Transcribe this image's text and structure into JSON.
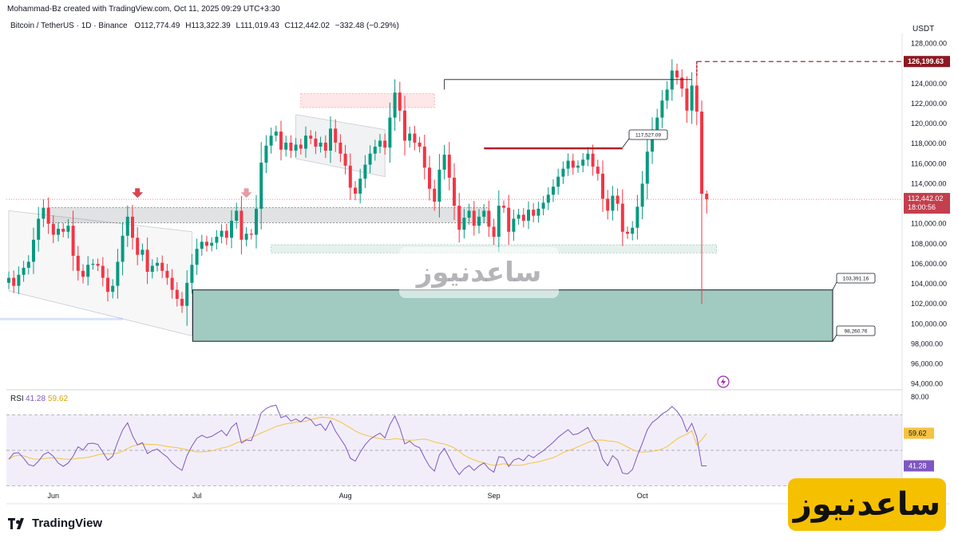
{
  "header": {
    "author_line": "Mohammad-Bz created with TradingView.com, Oct 11, 2025 09:29 UTC+3:30",
    "symbol": "Bitcoin / TetherUS · 1D · Binance",
    "open": "O112,774.49",
    "high": "H113,322.39",
    "low": "L111,019.43",
    "close": "C112,442.02",
    "change": "−332.48 (−0.29%)"
  },
  "currency": "USDT",
  "brand": {
    "tradingview": "TradingView",
    "watermark": "ساعدنیوز"
  },
  "colors": {
    "up": "#089981",
    "down": "#f23645",
    "rsi": "#7e57c2",
    "rsi_ma": "#f5c342",
    "zone": "#9cc7bd"
  },
  "chart_data": {
    "type": "candlestick",
    "timeframe": "1D",
    "ylim": [
      93500,
      129000
    ],
    "y_ticks": [
      94000,
      96000,
      98000,
      100000,
      102000,
      104000,
      106000,
      108000,
      110000,
      112000,
      114000,
      116000,
      118000,
      120000,
      122000,
      124000,
      126000,
      128000
    ],
    "y_tick_labels": [
      "94,000.00",
      "96,000.00",
      "98,000.00",
      "100,000.00",
      "102,000.00",
      "104,000.00",
      "106,000.00",
      "108,000.00",
      "110,000.00",
      "112,000.00",
      "114,000.00",
      "116,000.00",
      "118,000.00",
      "120,000.00",
      "122,000.00",
      "124,000.00",
      "126,000.00",
      "128,000.00"
    ],
    "x_labels": [
      "Jun",
      "Jul",
      "Aug",
      "Sep",
      "Oct"
    ],
    "x_label_index": [
      9,
      38,
      68,
      98,
      128
    ],
    "closes": [
      104600,
      103800,
      104900,
      105600,
      106200,
      108400,
      110500,
      111600,
      110000,
      108900,
      109500,
      109200,
      109800,
      106800,
      105300,
      104700,
      105900,
      106000,
      105800,
      104600,
      103200,
      103800,
      106200,
      108800,
      110700,
      108600,
      106900,
      107400,
      105200,
      105800,
      106100,
      105300,
      104600,
      103400,
      102500,
      101800,
      104100,
      105900,
      107500,
      108200,
      107800,
      108100,
      108700,
      109300,
      108600,
      110300,
      111300,
      108400,
      109000,
      108900,
      111500,
      116100,
      117800,
      118800,
      119200,
      117400,
      118100,
      117300,
      117900,
      117500,
      118800,
      118500,
      117700,
      118100,
      117300,
      119500,
      118100,
      117000,
      115800,
      113600,
      113000,
      114500,
      115900,
      117000,
      117700,
      118300,
      117600,
      120600,
      123100,
      121300,
      118300,
      119000,
      118100,
      117700,
      115600,
      113500,
      112200,
      115400,
      116900,
      114600,
      111800,
      109400,
      110600,
      111300,
      109800,
      110700,
      111300,
      109700,
      108700,
      111800,
      111600,
      109200,
      110500,
      110900,
      110300,
      111400,
      110800,
      111500,
      112100,
      112900,
      113700,
      114700,
      115500,
      116300,
      115600,
      115800,
      116400,
      117000,
      115700,
      115000,
      112500,
      111300,
      112800,
      112000,
      109200,
      109000,
      109600,
      111700,
      114000,
      117200,
      119400,
      120600,
      122300,
      123400,
      125300,
      124600,
      123500,
      121300,
      123800,
      121200,
      113000,
      112442
    ],
    "rsi": {
      "label": "RSI",
      "value_text": "41.28",
      "ma_text": "59.62",
      "ylim": [
        20,
        80
      ],
      "levels": [
        70,
        50,
        30
      ],
      "top_label": "80.00",
      "ma_tail": [
        53.0,
        56.0,
        59.62
      ]
    },
    "levels": {
      "last_price": "112,442.02",
      "countdown": "18:00:56",
      "ath": "126,199.63",
      "resistance": "117,527.09",
      "zone_top": "103,391.16",
      "zone_bottom": "98,260.76"
    }
  }
}
